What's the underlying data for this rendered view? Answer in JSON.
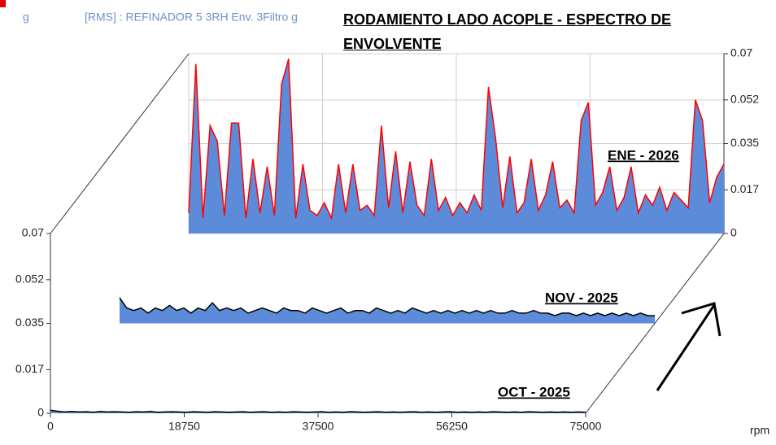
{
  "chart_data": {
    "type": "waterfall",
    "title": "RODAMIENTO LADO ACOPLE - ESPECTRO DE ENVOLVENTE",
    "subtitle": "[RMS] : REFINADOR 5 3RH Env. 3Filtro g",
    "y_label": "g",
    "x_label": "rpm",
    "xlim": [
      0,
      75000
    ],
    "xticks": [
      0,
      18750,
      37500,
      56250,
      75000
    ],
    "ylim": [
      0,
      0.07
    ],
    "yticks": [
      0,
      0.017,
      0.035,
      0.052,
      0.07
    ],
    "grid": true,
    "area_color": "#5b8bd9",
    "x": [
      0,
      1000,
      2000,
      3000,
      4000,
      5000,
      6000,
      7000,
      8000,
      9000,
      10000,
      11000,
      12000,
      13000,
      14000,
      15000,
      16000,
      17000,
      18000,
      19000,
      20000,
      21000,
      22000,
      23000,
      24000,
      25000,
      26000,
      27000,
      28000,
      29000,
      30000,
      31000,
      32000,
      33000,
      34000,
      35000,
      36000,
      37000,
      38000,
      39000,
      40000,
      41000,
      42000,
      43000,
      44000,
      45000,
      46000,
      47000,
      48000,
      49000,
      50000,
      51000,
      52000,
      53000,
      54000,
      55000,
      56000,
      57000,
      58000,
      59000,
      60000,
      61000,
      62000,
      63000,
      64000,
      65000,
      66000,
      67000,
      68000,
      69000,
      70000,
      71000,
      72000,
      73000,
      74000,
      75000
    ],
    "series": [
      {
        "name": "OCT - 2025",
        "color": "#000000",
        "values": [
          0.0012,
          0.0008,
          0.0005,
          0.0007,
          0.0005,
          0.0006,
          0.0004,
          0.0007,
          0.0005,
          0.0006,
          0.0005,
          0.0004,
          0.0006,
          0.0005,
          0.0007,
          0.0004,
          0.0005,
          0.0006,
          0.0005,
          0.0004,
          0.0006,
          0.0005,
          0.0004,
          0.0006,
          0.0005,
          0.0004,
          0.0005,
          0.0006,
          0.0004,
          0.0005,
          0.0006,
          0.0004,
          0.0005,
          0.0004,
          0.0006,
          0.0005,
          0.0004,
          0.0005,
          0.0006,
          0.0004,
          0.0005,
          0.0004,
          0.0006,
          0.0005,
          0.0004,
          0.0005,
          0.0006,
          0.0004,
          0.0005,
          0.0004,
          0.0005,
          0.0006,
          0.0004,
          0.0005,
          0.0004,
          0.0005,
          0.0006,
          0.0004,
          0.0005,
          0.0004,
          0.0005,
          0.0004,
          0.0006,
          0.0005,
          0.0004,
          0.0005,
          0.0004,
          0.0006,
          0.0005,
          0.0004,
          0.0005,
          0.0004,
          0.0005,
          0.0004,
          0.0005,
          0.0004
        ]
      },
      {
        "name": "NOV - 2025",
        "color": "#000000",
        "values": [
          0.01,
          0.006,
          0.005,
          0.006,
          0.004,
          0.006,
          0.005,
          0.007,
          0.005,
          0.006,
          0.004,
          0.006,
          0.005,
          0.008,
          0.005,
          0.006,
          0.005,
          0.006,
          0.004,
          0.005,
          0.006,
          0.005,
          0.004,
          0.006,
          0.005,
          0.005,
          0.004,
          0.006,
          0.005,
          0.004,
          0.005,
          0.006,
          0.004,
          0.005,
          0.005,
          0.004,
          0.006,
          0.005,
          0.004,
          0.005,
          0.004,
          0.006,
          0.005,
          0.004,
          0.005,
          0.004,
          0.005,
          0.004,
          0.005,
          0.004,
          0.005,
          0.004,
          0.005,
          0.004,
          0.004,
          0.005,
          0.004,
          0.004,
          0.005,
          0.004,
          0.004,
          0.003,
          0.004,
          0.004,
          0.003,
          0.004,
          0.003,
          0.004,
          0.003,
          0.004,
          0.003,
          0.004,
          0.003,
          0.004,
          0.003,
          0.003
        ]
      },
      {
        "name": "ENE - 2026",
        "color": "#ff0000",
        "values": [
          0.008,
          0.066,
          0.006,
          0.042,
          0.036,
          0.007,
          0.043,
          0.043,
          0.006,
          0.029,
          0.008,
          0.026,
          0.007,
          0.058,
          0.068,
          0.006,
          0.027,
          0.009,
          0.007,
          0.012,
          0.006,
          0.027,
          0.008,
          0.027,
          0.009,
          0.011,
          0.007,
          0.042,
          0.01,
          0.032,
          0.008,
          0.028,
          0.011,
          0.007,
          0.029,
          0.009,
          0.014,
          0.007,
          0.012,
          0.008,
          0.015,
          0.009,
          0.057,
          0.037,
          0.01,
          0.03,
          0.008,
          0.012,
          0.029,
          0.009,
          0.015,
          0.028,
          0.01,
          0.013,
          0.008,
          0.044,
          0.051,
          0.011,
          0.016,
          0.026,
          0.009,
          0.014,
          0.026,
          0.008,
          0.015,
          0.011,
          0.018,
          0.009,
          0.016,
          0.013,
          0.01,
          0.052,
          0.044,
          0.012,
          0.022,
          0.027
        ]
      }
    ]
  }
}
